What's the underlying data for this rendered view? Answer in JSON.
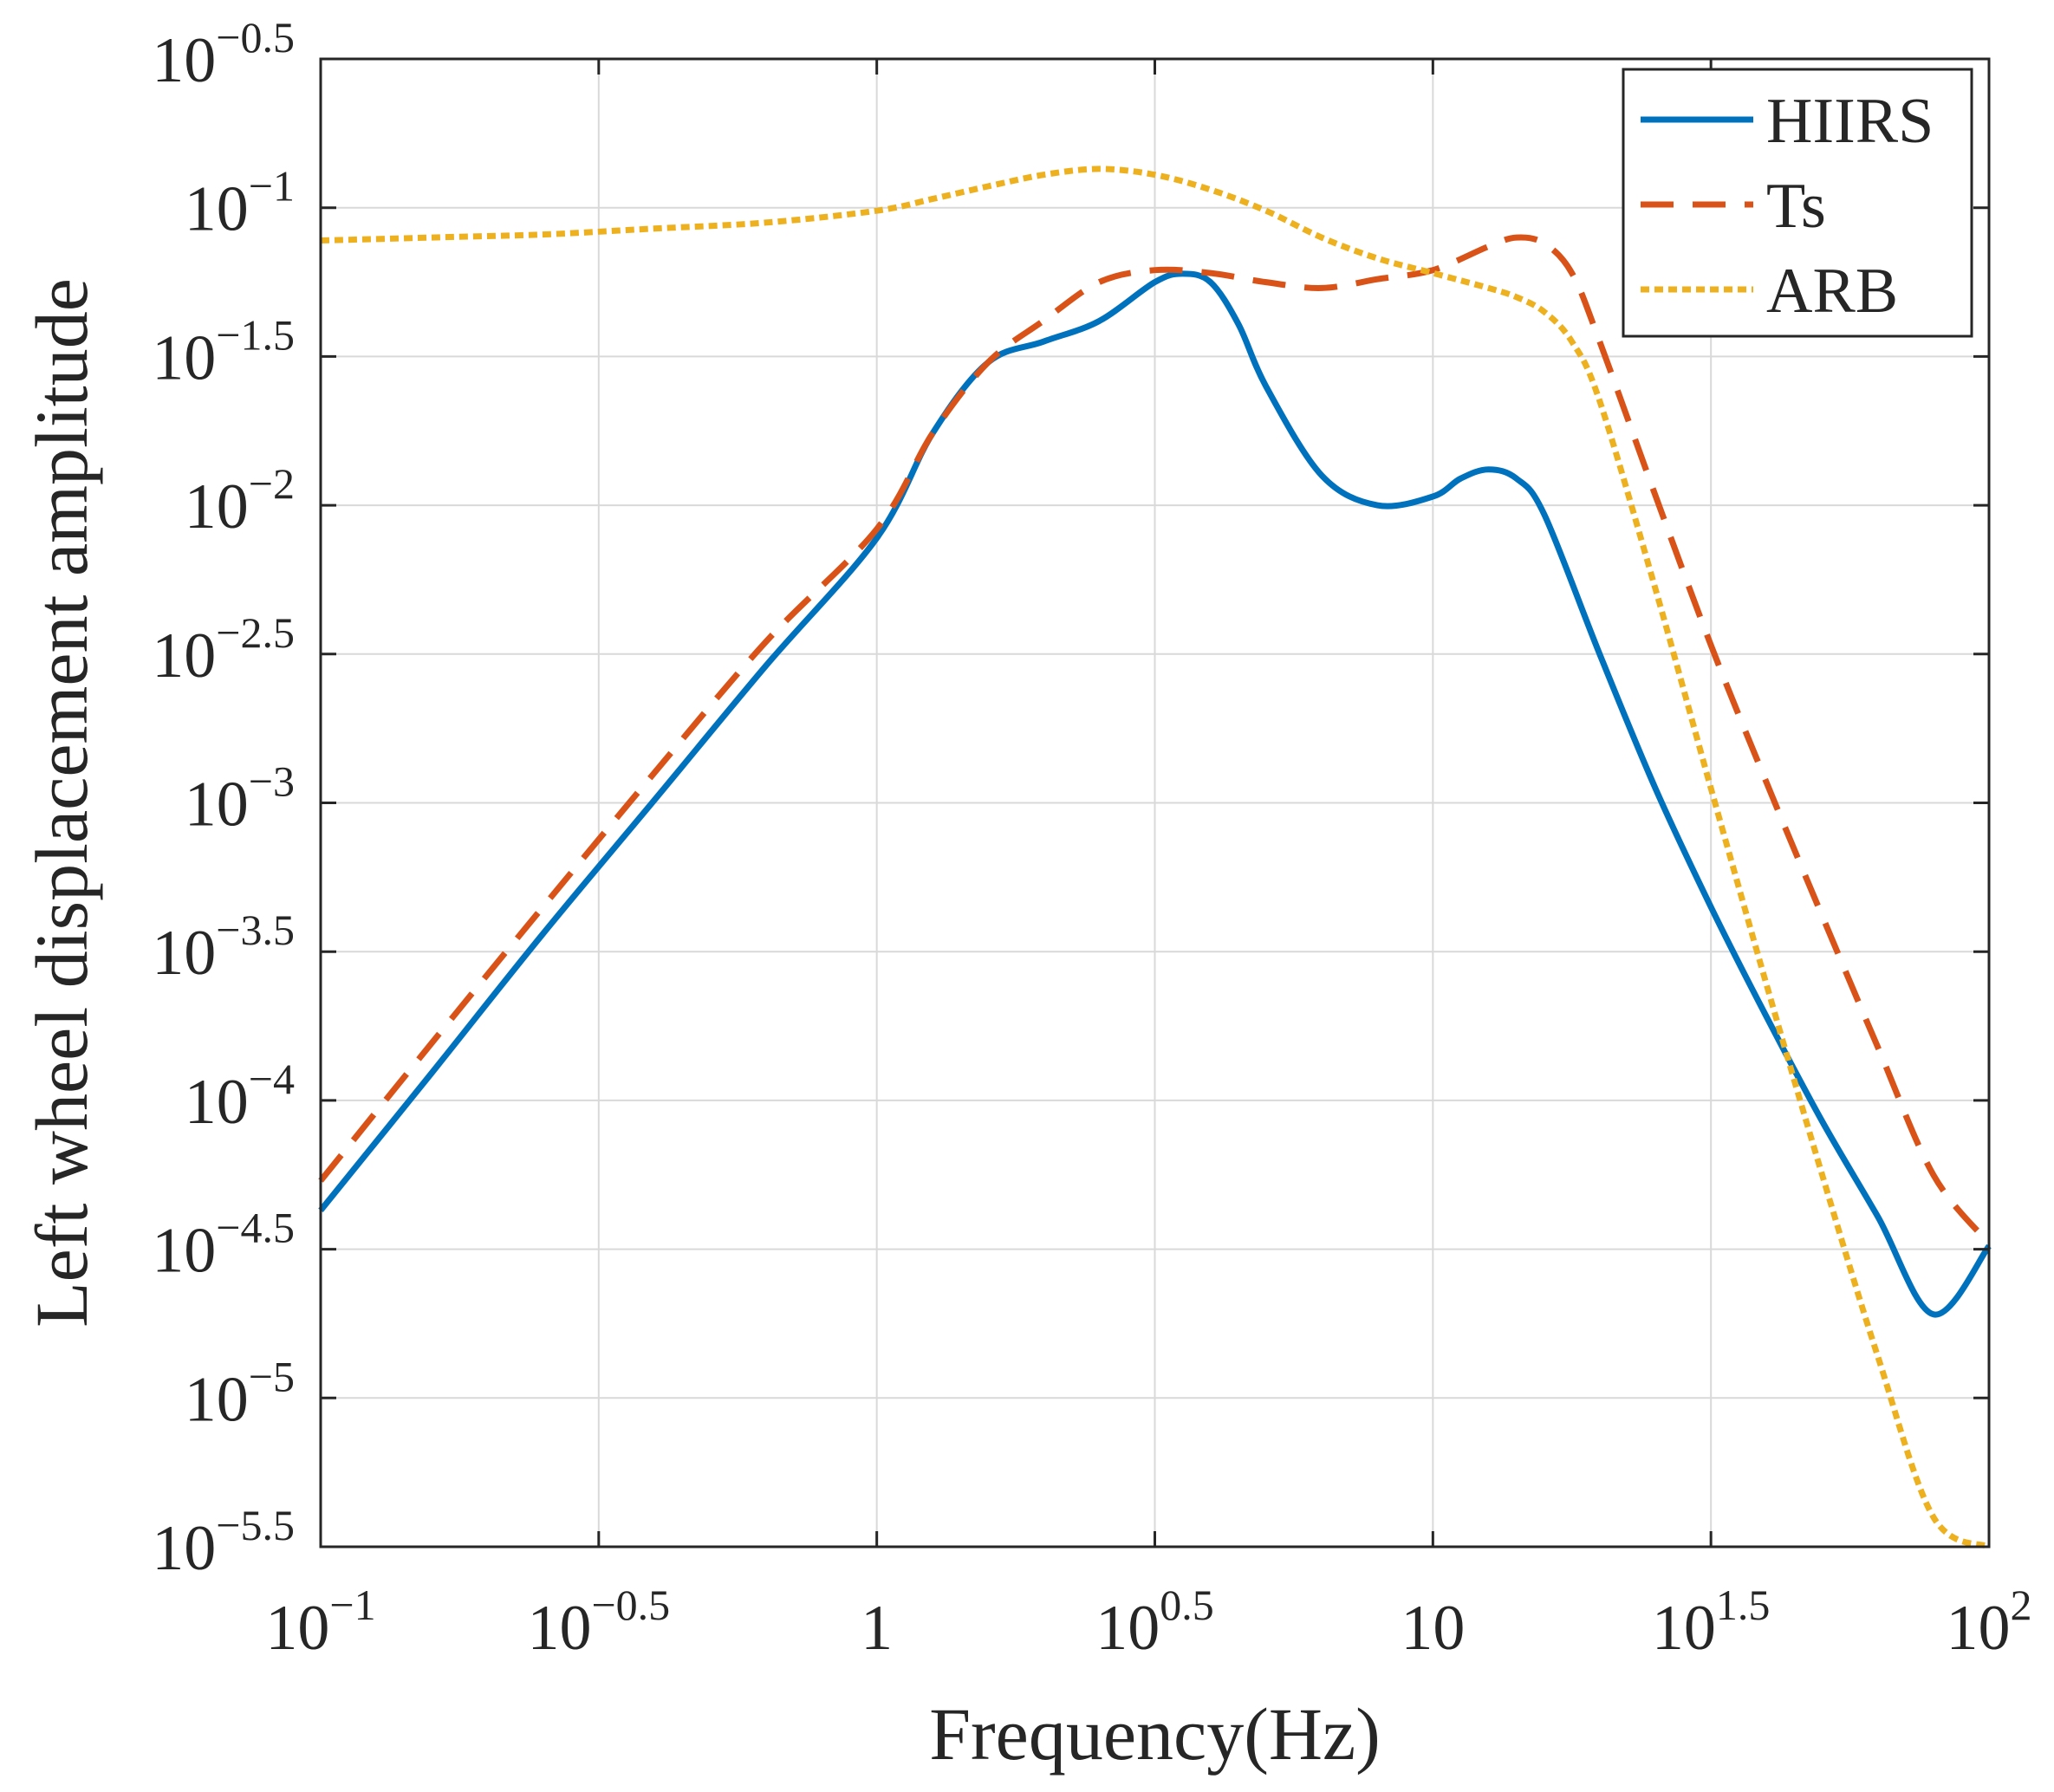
{
  "chart_data": {
    "type": "line",
    "xscale": "log",
    "yscale": "log",
    "xlabel": "Frequency(Hz)",
    "ylabel": "Left wheel displacement amplitude",
    "xlim": [
      0.1,
      100
    ],
    "ylim": [
      3.1623e-06,
      0.31623
    ],
    "grid": true,
    "legend_position": "top-right",
    "x_ticks": [
      {
        "base": "10",
        "exp": "−1"
      },
      {
        "base": "10",
        "exp": "−0.5"
      },
      {
        "base": "1",
        "exp": ""
      },
      {
        "base": "10",
        "exp": "0.5"
      },
      {
        "base": "10",
        "exp": ""
      },
      {
        "base": "10",
        "exp": "1.5"
      },
      {
        "base": "10",
        "exp": "2"
      }
    ],
    "y_ticks": [
      {
        "base": "10",
        "exp": "−0.5"
      },
      {
        "base": "10",
        "exp": "−1"
      },
      {
        "base": "10",
        "exp": "−1.5"
      },
      {
        "base": "10",
        "exp": "−2"
      },
      {
        "base": "10",
        "exp": "−2.5"
      },
      {
        "base": "10",
        "exp": "−3"
      },
      {
        "base": "10",
        "exp": "−3.5"
      },
      {
        "base": "10",
        "exp": "−4"
      },
      {
        "base": "10",
        "exp": "−4.5"
      },
      {
        "base": "10",
        "exp": "−5"
      },
      {
        "base": "10",
        "exp": "−5.5"
      }
    ],
    "series": [
      {
        "name": "HIIRS",
        "color": "#0072BD",
        "style": "solid",
        "x": [
          0.1,
          0.158,
          0.251,
          0.398,
          0.631,
          1.0,
          1.259,
          1.585,
          1.995,
          2.512,
          3.162,
          3.548,
          3.981,
          4.467,
          5.012,
          6.31,
          7.943,
          10.0,
          11.22,
          12.59,
          14.13,
          15.85,
          19.95,
          25.12,
          31.62,
          39.81,
          50.12,
          63.1,
          79.43,
          100.0
        ],
        "y": [
          4.27e-05,
          0.000123,
          0.000363,
          0.00102,
          0.00288,
          0.00776,
          0.0174,
          0.0302,
          0.0355,
          0.0416,
          0.0562,
          0.06,
          0.0562,
          0.0407,
          0.0251,
          0.0126,
          0.01,
          0.0107,
          0.0123,
          0.0132,
          0.0123,
          0.00933,
          0.00316,
          0.00112,
          0.000447,
          0.000191,
          8.51e-05,
          4.07e-05,
          1.91e-05,
          3.24e-05
        ]
      },
      {
        "name": "Ts",
        "color": "#D95319",
        "style": "dashed",
        "x": [
          0.1,
          0.158,
          0.251,
          0.398,
          0.631,
          1.0,
          1.259,
          1.585,
          1.995,
          2.512,
          3.162,
          3.981,
          5.012,
          6.31,
          7.943,
          10.0,
          12.59,
          14.13,
          15.85,
          17.78,
          19.95,
          25.12,
          31.62,
          39.81,
          50.12,
          63.1,
          79.43,
          100.0
        ],
        "y": [
          5.37e-05,
          0.000155,
          0.000447,
          0.00126,
          0.00347,
          0.00832,
          0.0174,
          0.0302,
          0.0417,
          0.0562,
          0.0617,
          0.0603,
          0.0562,
          0.0537,
          0.0575,
          0.0617,
          0.0741,
          0.0794,
          0.0759,
          0.0603,
          0.0355,
          0.0108,
          0.00339,
          0.00117,
          0.000417,
          0.000151,
          5.62e-05,
          3.31e-05
        ]
      },
      {
        "name": "ARB",
        "color": "#EDB120",
        "style": "dotted",
        "x": [
          0.1,
          0.158,
          0.251,
          0.398,
          0.631,
          1.0,
          1.259,
          1.585,
          1.995,
          2.512,
          3.162,
          3.981,
          5.012,
          6.31,
          7.943,
          10.0,
          12.59,
          14.13,
          15.85,
          17.78,
          19.95,
          25.12,
          31.62,
          39.81,
          50.12,
          63.1,
          79.43,
          100.0
        ],
        "y": [
          0.0776,
          0.0794,
          0.0813,
          0.0851,
          0.0891,
          0.0977,
          0.107,
          0.118,
          0.129,
          0.135,
          0.129,
          0.115,
          0.0977,
          0.0794,
          0.0676,
          0.0603,
          0.0537,
          0.0501,
          0.0447,
          0.0355,
          0.0224,
          0.00525,
          0.00112,
          0.000245,
          5.62e-05,
          1.38e-05,
          3.98e-06,
          3.16e-06
        ]
      }
    ]
  }
}
